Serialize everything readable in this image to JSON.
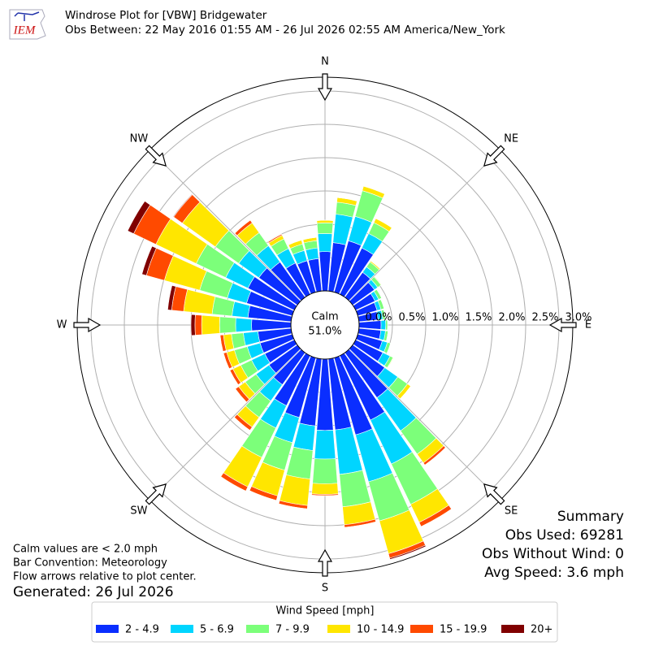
{
  "chart_data": {
    "type": "windrose",
    "title": "Windrose Plot for [VBW] Bridgewater",
    "subtitle": "Obs Between: 22 May 2016 01:55 AM - 26 Jul 2026 02:55 AM America/New_York",
    "logo_text": "IEM",
    "x": [
      0,
      10,
      20,
      30,
      40,
      50,
      60,
      70,
      80,
      90,
      100,
      110,
      120,
      130,
      140,
      150,
      160,
      170,
      180,
      190,
      200,
      210,
      220,
      230,
      240,
      250,
      260,
      270,
      280,
      290,
      300,
      310,
      320,
      330,
      340,
      350
    ],
    "xlim": [
      0,
      360
    ],
    "xticks": [
      {
        "value": 0,
        "label": "N"
      },
      {
        "value": 45,
        "label": "NE"
      },
      {
        "value": 90,
        "label": "E"
      },
      {
        "value": 135,
        "label": "SE"
      },
      {
        "value": 180,
        "label": "S"
      },
      {
        "value": 225,
        "label": "SW"
      },
      {
        "value": 270,
        "label": "W"
      },
      {
        "value": 315,
        "label": "NW"
      }
    ],
    "ylim": [
      0,
      3
    ],
    "yticks": [
      {
        "value": 0,
        "label": "0.0%"
      },
      {
        "value": 0.5,
        "label": "0.5%"
      },
      {
        "value": 1,
        "label": "1.0%"
      },
      {
        "value": 1.5,
        "label": "1.5%"
      },
      {
        "value": 2,
        "label": "2.0%"
      },
      {
        "value": 2.5,
        "label": "2.5%"
      },
      {
        "value": 3,
        "label": "3.0%"
      }
    ],
    "grid": true,
    "calm_text": [
      "Calm",
      "51.0%"
    ],
    "legend_title": "Wind Speed [mph]",
    "series": [
      {
        "name": "2 - 4.9",
        "color": "#0a2eff",
        "values": [
          0.59,
          0.73,
          0.8,
          0.77,
          0.46,
          0.4,
          0.32,
          0.3,
          0.29,
          0.33,
          0.33,
          0.38,
          0.45,
          0.59,
          0.83,
          1.07,
          1.2,
          1.07,
          1.07,
          1.01,
          0.93,
          0.83,
          0.59,
          0.52,
          0.49,
          0.5,
          0.5,
          0.59,
          0.65,
          0.71,
          0.77,
          0.71,
          0.65,
          0.52,
          0.49,
          0.49
        ]
      },
      {
        "name": "5 - 6.9",
        "color": "#00d5ff",
        "values": [
          0.27,
          0.43,
          0.38,
          0.24,
          0.1,
          0.06,
          0.06,
          0.06,
          0.07,
          0.07,
          0.07,
          0.08,
          0.12,
          0.24,
          0.61,
          0.73,
          0.73,
          0.67,
          0.43,
          0.37,
          0.39,
          0.37,
          0.3,
          0.24,
          0.22,
          0.2,
          0.22,
          0.24,
          0.24,
          0.3,
          0.37,
          0.37,
          0.3,
          0.24,
          0.16,
          0.16
        ]
      },
      {
        "name": "7 - 9.9",
        "color": "#7cff7a",
        "values": [
          0.16,
          0.18,
          0.4,
          0.18,
          0.09,
          0.06,
          0.05,
          0.05,
          0.04,
          0.03,
          0.04,
          0.05,
          0.05,
          0.18,
          0.43,
          0.67,
          0.61,
          0.49,
          0.37,
          0.43,
          0.43,
          0.49,
          0.3,
          0.2,
          0.18,
          0.2,
          0.18,
          0.24,
          0.3,
          0.43,
          0.49,
          0.43,
          0.24,
          0.16,
          0.1,
          0.11
        ]
      },
      {
        "name": "10 - 14.9",
        "color": "#ffe600",
        "values": [
          0.04,
          0.07,
          0.07,
          0.07,
          0.02,
          0.01,
          0,
          0,
          0,
          0,
          0,
          0,
          0.01,
          0.06,
          0.16,
          0.3,
          0.51,
          0.27,
          0.16,
          0.4,
          0.4,
          0.49,
          0.18,
          0.12,
          0.13,
          0.12,
          0.12,
          0.27,
          0.43,
          0.55,
          0.67,
          0.61,
          0.18,
          0.06,
          0.06,
          0.05
        ]
      },
      {
        "name": "15 - 19.9",
        "color": "#ff4a00",
        "values": [
          0,
          0,
          0,
          0,
          0,
          0,
          0,
          0,
          0,
          0,
          0,
          0,
          0,
          0,
          0.04,
          0.07,
          0.07,
          0.04,
          0.02,
          0.05,
          0.07,
          0.07,
          0.06,
          0.06,
          0.05,
          0.05,
          0.05,
          0.1,
          0.18,
          0.28,
          0.37,
          0.16,
          0.05,
          0.02,
          0,
          0
        ]
      },
      {
        "name": "20+",
        "color": "#800000",
        "values": [
          0,
          0,
          0,
          0,
          0,
          0,
          0,
          0,
          0,
          0,
          0,
          0,
          0,
          0,
          0,
          0,
          0.02,
          0,
          0,
          0,
          0,
          0,
          0,
          0,
          0,
          0,
          0,
          0.06,
          0.06,
          0.07,
          0.1,
          0.01,
          0,
          0,
          0,
          0
        ]
      }
    ],
    "summary": [
      "Summary",
      "Obs Used: 69281",
      "Obs Without Wind: 0",
      "Avg Speed: 3.6 mph"
    ],
    "notes": [
      "Calm values are < 2.0 mph",
      "Bar Convention: Meteorology",
      "Flow arrows relative to plot center."
    ],
    "generated": "Generated: 26 Jul 2026"
  }
}
